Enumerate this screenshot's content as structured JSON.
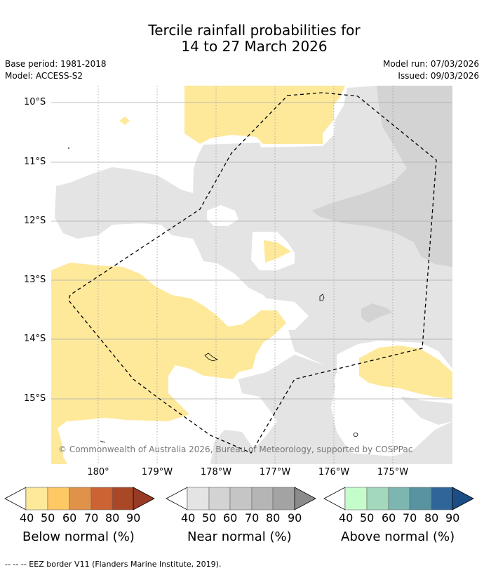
{
  "title": {
    "line1": "Tercile rainfall probabilities for",
    "line2": "14 to 27 March 2026"
  },
  "meta": {
    "base_period": "Base period: 1981-2018",
    "model": "Model: ACCESS-S2",
    "model_run": "Model run: 07/03/2026",
    "issued": "Issued: 09/03/2026"
  },
  "map": {
    "latitude_labels": [
      "10°S",
      "11°S",
      "12°S",
      "13°S",
      "14°S",
      "15°S"
    ],
    "longitude_labels": [
      "180°",
      "179°W",
      "178°W",
      "177°W",
      "176°W",
      "175°W"
    ],
    "copyright": "© Commonwealth of Australia 2026, Bureau of Meteorology, supported by COSPPac",
    "colors": {
      "below_40": "#fee99b",
      "near_40": "#e4e4e4",
      "near_50": "#d3d3d3",
      "land_outline": "#000000",
      "gridline": "#aaaaaa"
    }
  },
  "colorbars": [
    {
      "id": "below",
      "title": "Below normal (%)",
      "ticks": [
        "40",
        "50",
        "60",
        "70",
        "80",
        "90"
      ],
      "colors": [
        "#fee99b",
        "#fec965",
        "#e0914a",
        "#cc6332",
        "#a94827",
        "#993a25"
      ]
    },
    {
      "id": "near",
      "title": "Near normal (%)",
      "ticks": [
        "40",
        "50",
        "60",
        "70",
        "80",
        "90"
      ],
      "colors": [
        "#e4e4e4",
        "#d3d3d3",
        "#c5c5c5",
        "#b5b5b5",
        "#a3a3a3",
        "#8b8b8b"
      ]
    },
    {
      "id": "above",
      "title": "Above normal (%)",
      "ticks": [
        "40",
        "50",
        "60",
        "70",
        "80",
        "90"
      ],
      "colors": [
        "#c5fccc",
        "#a3d8bd",
        "#7db6b0",
        "#5893a1",
        "#2f6599",
        "#1c4d84"
      ]
    }
  ],
  "footnote": "-- -- -- EEZ border V11 (Flanders Marine Institute, 2019)."
}
